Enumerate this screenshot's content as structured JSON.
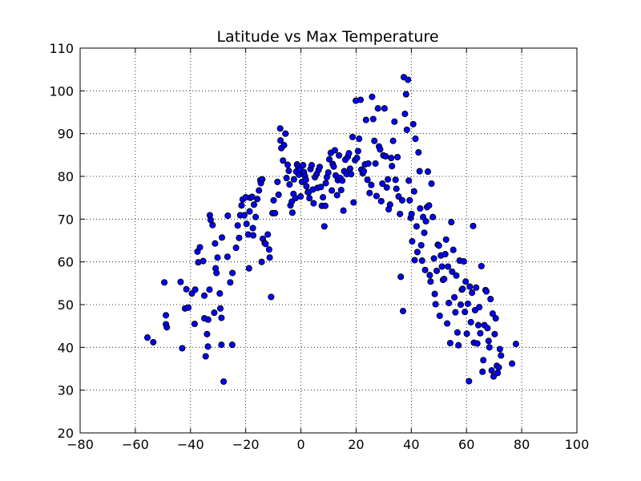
{
  "chart_data": {
    "type": "scatter",
    "title": "Latitude vs Max Temperature",
    "xlabel": "",
    "ylabel": "",
    "xlim": [
      -80,
      100
    ],
    "ylim": [
      20,
      110
    ],
    "x_ticks": [
      -80,
      -60,
      -40,
      -20,
      0,
      20,
      40,
      60,
      80,
      100
    ],
    "y_ticks": [
      20,
      30,
      40,
      50,
      60,
      70,
      80,
      90,
      100,
      110
    ],
    "grid": true,
    "legend": "none",
    "marker_color": "#0000ff",
    "marker_edge_color": "#000000",
    "points": [
      [
        -55.6,
        42.3
      ],
      [
        -53.5,
        41.2
      ],
      [
        -49.5,
        55.2
      ],
      [
        -48.9,
        45.4
      ],
      [
        -48.6,
        44.7
      ],
      [
        -48.9,
        47.5
      ],
      [
        -43.6,
        55.3
      ],
      [
        -43.0,
        39.8
      ],
      [
        -42.0,
        49.1
      ],
      [
        -41.5,
        53.6
      ],
      [
        -40.8,
        49.3
      ],
      [
        -39.5,
        52.6
      ],
      [
        -38.3,
        53.5
      ],
      [
        -38.5,
        45.5
      ],
      [
        -37.2,
        59.9
      ],
      [
        -37.5,
        62.4
      ],
      [
        -36.6,
        63.4
      ],
      [
        -35.4,
        60.2
      ],
      [
        -35.0,
        52.1
      ],
      [
        -35.0,
        46.8
      ],
      [
        -34.5,
        37.9
      ],
      [
        -34.0,
        43.1
      ],
      [
        -33.6,
        46.5
      ],
      [
        -33.1,
        53.5
      ],
      [
        -33.7,
        40.2
      ],
      [
        -33.0,
        70.9
      ],
      [
        -32.7,
        69.8
      ],
      [
        -32.0,
        68.6
      ],
      [
        -31.4,
        48.1
      ],
      [
        -31.1,
        64.3
      ],
      [
        -30.9,
        58.5
      ],
      [
        -30.2,
        61.0
      ],
      [
        -30.6,
        57.4
      ],
      [
        -29.4,
        52.6
      ],
      [
        -29.2,
        49.1
      ],
      [
        -28.8,
        46.9
      ],
      [
        -28.6,
        65.7
      ],
      [
        -28.0,
        32.0
      ],
      [
        -28.8,
        40.6
      ],
      [
        -26.5,
        70.8
      ],
      [
        -26.6,
        61.2
      ],
      [
        -25.6,
        55.2
      ],
      [
        -24.8,
        57.4
      ],
      [
        -24.9,
        40.6
      ],
      [
        -23.5,
        63.3
      ],
      [
        -22.9,
        68.5
      ],
      [
        -22.4,
        65.6
      ],
      [
        -22.0,
        70.9
      ],
      [
        -21.5,
        73.2
      ],
      [
        -21.1,
        74.6
      ],
      [
        -20.5,
        70.9
      ],
      [
        -20.0,
        75.1
      ],
      [
        -19.7,
        68.9
      ],
      [
        -19.1,
        66.4
      ],
      [
        -18.8,
        58.5
      ],
      [
        -18.6,
        71.8
      ],
      [
        -18.3,
        75.0
      ],
      [
        -17.7,
        75.2
      ],
      [
        -17.4,
        67.9
      ],
      [
        -17.3,
        66.2
      ],
      [
        -17.0,
        73.4
      ],
      [
        -16.4,
        70.5
      ],
      [
        -15.8,
        74.7
      ],
      [
        -15.2,
        76.7
      ],
      [
        -14.7,
        79.1
      ],
      [
        -14.5,
        78.4
      ],
      [
        -14.0,
        79.3
      ],
      [
        -14.2,
        60.0
      ],
      [
        -13.8,
        65.4
      ],
      [
        -13.1,
        64.4
      ],
      [
        -12.8,
        64.2
      ],
      [
        -12.0,
        66.4
      ],
      [
        -11.5,
        62.9
      ],
      [
        -11.3,
        61.0
      ],
      [
        -10.8,
        51.8
      ],
      [
        -10.3,
        71.4
      ],
      [
        -9.9,
        74.4
      ],
      [
        -9.4,
        71.4
      ],
      [
        -8.5,
        78.7
      ],
      [
        -8.1,
        75.7
      ],
      [
        -7.5,
        91.2
      ],
      [
        -7.4,
        88.4
      ],
      [
        -7.1,
        86.6
      ],
      [
        -6.5,
        83.7
      ],
      [
        -6.1,
        87.3
      ],
      [
        -5.6,
        90.0
      ],
      [
        -5.2,
        79.6
      ],
      [
        -4.8,
        82.7
      ],
      [
        -4.4,
        81.3
      ],
      [
        -4.1,
        78.1
      ],
      [
        -3.8,
        73.2
      ],
      [
        -3.3,
        74.1
      ],
      [
        -3.1,
        71.5
      ],
      [
        -2.7,
        75.9
      ],
      [
        -2.5,
        79.3
      ],
      [
        -2.0,
        74.9
      ],
      [
        -1.7,
        81.1
      ],
      [
        -1.4,
        82.8
      ],
      [
        -1.0,
        82.3
      ],
      [
        -0.7,
        80.4
      ],
      [
        -0.3,
        81.7
      ],
      [
        -0.1,
        75.3
      ],
      [
        0.4,
        78.7
      ],
      [
        0.8,
        82.6
      ],
      [
        1.1,
        81.0
      ],
      [
        1.4,
        80.1
      ],
      [
        1.8,
        79.2
      ],
      [
        2.0,
        77.7
      ],
      [
        2.5,
        76.3
      ],
      [
        2.8,
        76.3
      ],
      [
        3.1,
        74.9
      ],
      [
        3.5,
        81.7
      ],
      [
        3.9,
        82.6
      ],
      [
        4.3,
        76.9
      ],
      [
        4.6,
        73.7
      ],
      [
        5.1,
        79.8
      ],
      [
        5.7,
        80.5
      ],
      [
        6.0,
        77.3
      ],
      [
        6.4,
        81.5
      ],
      [
        6.8,
        82.2
      ],
      [
        7.2,
        77.5
      ],
      [
        7.6,
        73.1
      ],
      [
        8.0,
        75.1
      ],
      [
        8.5,
        68.3
      ],
      [
        8.8,
        73.1
      ],
      [
        9.0,
        78.4
      ],
      [
        9.4,
        79.8
      ],
      [
        9.9,
        80.9
      ],
      [
        10.3,
        84.0
      ],
      [
        10.8,
        85.5
      ],
      [
        11.2,
        76.7
      ],
      [
        11.5,
        82.9
      ],
      [
        11.9,
        82.3
      ],
      [
        12.3,
        86.1
      ],
      [
        12.6,
        80.2
      ],
      [
        13.1,
        75.6
      ],
      [
        13.4,
        79.1
      ],
      [
        13.8,
        84.9
      ],
      [
        14.2,
        79.6
      ],
      [
        14.6,
        76.8
      ],
      [
        15.0,
        79.0
      ],
      [
        15.4,
        72.0
      ],
      [
        15.7,
        81.2
      ],
      [
        16.1,
        83.9
      ],
      [
        16.6,
        80.5
      ],
      [
        17.0,
        84.6
      ],
      [
        17.4,
        85.4
      ],
      [
        17.8,
        81.8
      ],
      [
        18.2,
        80.5
      ],
      [
        18.7,
        89.2
      ],
      [
        19.1,
        73.9
      ],
      [
        19.6,
        83.8
      ],
      [
        19.9,
        97.7
      ],
      [
        20.3,
        84.3
      ],
      [
        20.7,
        85.9
      ],
      [
        21.1,
        88.8
      ],
      [
        21.6,
        97.9
      ],
      [
        21.9,
        81.6
      ],
      [
        22.4,
        80.7
      ],
      [
        22.8,
        81.2
      ],
      [
        23.2,
        82.8
      ],
      [
        23.6,
        93.2
      ],
      [
        24.1,
        79.2
      ],
      [
        24.4,
        83.0
      ],
      [
        24.9,
        76.1
      ],
      [
        25.5,
        78.0
      ],
      [
        25.8,
        98.6
      ],
      [
        26.2,
        93.4
      ],
      [
        26.6,
        88.3
      ],
      [
        27.0,
        83.0
      ],
      [
        27.4,
        75.4
      ],
      [
        27.9,
        95.9
      ],
      [
        28.3,
        87.0
      ],
      [
        28.7,
        86.3
      ],
      [
        29.1,
        74.2
      ],
      [
        29.5,
        78.3
      ],
      [
        29.9,
        84.9
      ],
      [
        30.3,
        95.9
      ],
      [
        30.7,
        84.7
      ],
      [
        31.1,
        77.4
      ],
      [
        31.5,
        79.3
      ],
      [
        31.8,
        72.3
      ],
      [
        32.3,
        73.4
      ],
      [
        32.7,
        84.3
      ],
      [
        33.0,
        82.4
      ],
      [
        33.4,
        88.3
      ],
      [
        33.9,
        92.8
      ],
      [
        34.3,
        79.2
      ],
      [
        34.6,
        77.1
      ],
      [
        35.0,
        84.5
      ],
      [
        35.4,
        75.3
      ],
      [
        35.9,
        71.2
      ],
      [
        36.2,
        56.5
      ],
      [
        36.7,
        74.4
      ],
      [
        37.0,
        48.5
      ],
      [
        37.3,
        103.2
      ],
      [
        37.7,
        94.6
      ],
      [
        38.1,
        99.2
      ],
      [
        38.4,
        90.9
      ],
      [
        38.8,
        102.6
      ],
      [
        39.1,
        79.0
      ],
      [
        39.4,
        74.4
      ],
      [
        39.8,
        70.3
      ],
      [
        40.1,
        71.2
      ],
      [
        40.3,
        64.8
      ],
      [
        40.7,
        92.2
      ],
      [
        41.0,
        76.5
      ],
      [
        41.2,
        60.4
      ],
      [
        41.5,
        88.8
      ],
      [
        41.9,
        68.3
      ],
      [
        42.2,
        62.3
      ],
      [
        42.6,
        85.6
      ],
      [
        43.0,
        81.2
      ],
      [
        43.2,
        72.5
      ],
      [
        43.6,
        63.9
      ],
      [
        43.9,
        60.3
      ],
      [
        44.3,
        70.5
      ],
      [
        44.7,
        66.8
      ],
      [
        45.0,
        58.1
      ],
      [
        45.3,
        69.5
      ],
      [
        45.7,
        72.8
      ],
      [
        46.0,
        81.1
      ],
      [
        46.4,
        73.2
      ],
      [
        46.7,
        56.9
      ],
      [
        47.0,
        55.4
      ],
      [
        47.3,
        78.3
      ],
      [
        47.8,
        70.5
      ],
      [
        48.2,
        60.8
      ],
      [
        48.5,
        52.5
      ],
      [
        48.8,
        50.1
      ],
      [
        49.2,
        57.9
      ],
      [
        49.6,
        64.0
      ],
      [
        50.0,
        63.8
      ],
      [
        50.3,
        47.4
      ],
      [
        50.7,
        61.5
      ],
      [
        51.1,
        58.9
      ],
      [
        51.5,
        55.8
      ],
      [
        51.9,
        56.0
      ],
      [
        52.3,
        61.8
      ],
      [
        52.6,
        65.2
      ],
      [
        53.0,
        45.6
      ],
      [
        53.3,
        58.9
      ],
      [
        53.6,
        50.4
      ],
      [
        54.1,
        41.0
      ],
      [
        54.5,
        69.3
      ],
      [
        54.8,
        57.7
      ],
      [
        55.2,
        62.8
      ],
      [
        55.6,
        51.7
      ],
      [
        56.0,
        48.2
      ],
      [
        56.3,
        56.8
      ],
      [
        56.7,
        43.5
      ],
      [
        57.1,
        40.5
      ],
      [
        57.5,
        60.3
      ],
      [
        57.9,
        50.0
      ],
      [
        58.3,
        53.5
      ],
      [
        58.6,
        53.7
      ],
      [
        59.0,
        60.1
      ],
      [
        59.4,
        48.3
      ],
      [
        59.7,
        55.4
      ],
      [
        60.1,
        43.2
      ],
      [
        60.5,
        50.2
      ],
      [
        60.9,
        32.1
      ],
      [
        61.2,
        54.2
      ],
      [
        61.6,
        45.9
      ],
      [
        62.0,
        52.8
      ],
      [
        62.4,
        68.4
      ],
      [
        62.7,
        41.1
      ],
      [
        63.1,
        48.7
      ],
      [
        63.5,
        54.0
      ],
      [
        63.9,
        40.9
      ],
      [
        64.3,
        45.2
      ],
      [
        64.6,
        49.4
      ],
      [
        65.0,
        43.3
      ],
      [
        65.4,
        59.0
      ],
      [
        65.8,
        34.3
      ],
      [
        66.1,
        37.0
      ],
      [
        66.5,
        45.2
      ],
      [
        66.9,
        53.4
      ],
      [
        67.2,
        53.1
      ],
      [
        67.6,
        44.5
      ],
      [
        68.0,
        41.5
      ],
      [
        68.3,
        40.0
      ],
      [
        68.7,
        51.3
      ],
      [
        69.1,
        34.6
      ],
      [
        69.5,
        47.9
      ],
      [
        69.8,
        33.2
      ],
      [
        70.2,
        43.1
      ],
      [
        70.6,
        46.8
      ],
      [
        71.0,
        35.7
      ],
      [
        71.3,
        34.0
      ],
      [
        71.7,
        35.3
      ],
      [
        72.1,
        39.6
      ],
      [
        72.5,
        38.1
      ],
      [
        76.5,
        36.2
      ],
      [
        77.9,
        40.8
      ]
    ]
  },
  "page": {
    "title": "Latitude vs Max Temperature"
  }
}
